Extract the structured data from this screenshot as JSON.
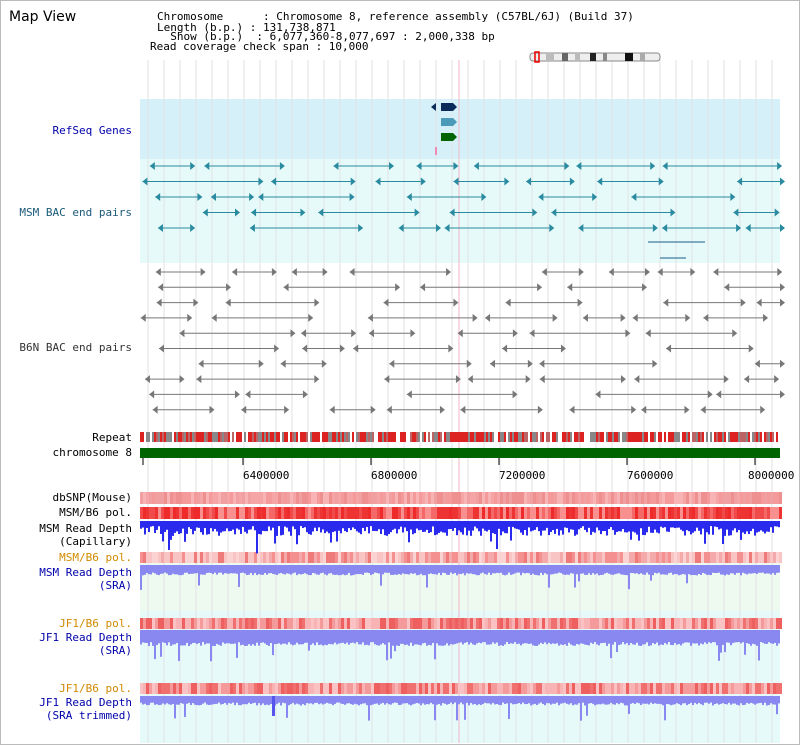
{
  "view_title": "Map View",
  "info": {
    "chromosome": "Chromosome      : Chromosome 8, reference assembly (C57BL/6J) (Build 37)",
    "length": "Length (b.p.) : 131,738,871",
    "show": "  Show (b.p.)  : 6,077,360-8,077,697 : 2,000,338 bp",
    "coverage": "Read coverage check span : 10,000"
  },
  "tracks": {
    "refseq": "RefSeq Genes",
    "msm_bac": "MSM BAC end pairs",
    "b6n_bac": "B6N BAC end pairs",
    "repeat": "Repeat",
    "chromosome": "chromosome 8",
    "dbsnp": "dbSNP(Mouse)",
    "msm_b6_pol": "MSM/B6 pol.",
    "msm_depth_cap_1": "MSM Read Depth",
    "msm_depth_cap_2": "(Capillary)",
    "msm_b6_pol_2": "MSM/B6 pol.",
    "msm_depth_sra_1": "MSM Read Depth",
    "msm_depth_sra_2": "(SRA)",
    "jf1_b6_pol": "JF1/B6 pol.",
    "jf1_depth_sra_1": "JF1 Read Depth",
    "jf1_depth_sra_2": "(SRA)",
    "jf1_b6_pol_2": "JF1/B6 pol.",
    "jf1_depth_trim_1": "JF1 Read Depth",
    "jf1_depth_trim_2": "(SRA trimmed)"
  },
  "axis": {
    "ticks": [
      "6400000",
      "6800000",
      "7200000",
      "7600000",
      "8000000"
    ]
  },
  "colors": {
    "refseq_bg": "#d6f0fa",
    "track_bg": "#e6fafa",
    "msm_feature": "#2a8aa0",
    "b6n_feature": "#777777",
    "chromosome_bar": "#006400",
    "snp_red": "#ee3333",
    "depth_blue": "#3333ee",
    "depth_light": "#8888f0"
  }
}
